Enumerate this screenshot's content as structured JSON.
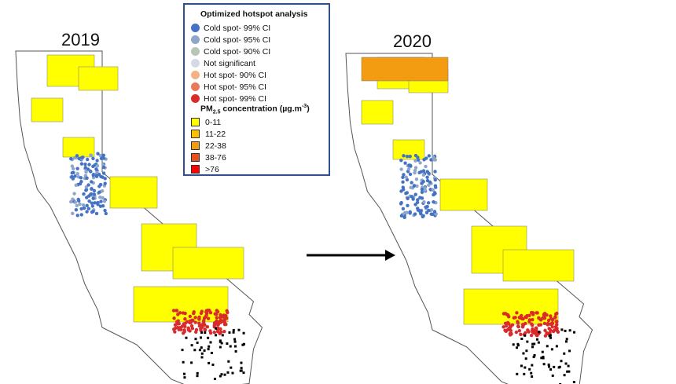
{
  "map_left": {
    "year": "2019"
  },
  "map_right": {
    "year": "2020"
  },
  "legend": {
    "title": "Optimized hotspot analysis",
    "hotspot_items": [
      {
        "label": "Cold spot- 99% CI",
        "color": "#4472c4"
      },
      {
        "label": "Cold spot- 95% CI",
        "color": "#8ea6c9"
      },
      {
        "label": "Cold spot- 90% CI",
        "color": "#b8c6b6"
      },
      {
        "label": "Not significant",
        "color": "#d3dce6"
      },
      {
        "label": "Hot spot- 90% CI",
        "color": "#f4b183"
      },
      {
        "label": "Hot spot- 95% CI",
        "color": "#e77a5a"
      },
      {
        "label": "Hot spot- 99% CI",
        "color": "#d92b2b"
      }
    ],
    "pm_title_prefix": "PM",
    "pm_title_sub": "2.5",
    "pm_title_mid": " concentration (µg.m",
    "pm_title_sup": "-3",
    "pm_title_suffix": ")",
    "pm_items": [
      {
        "label": "0-11",
        "color": "#ffff00"
      },
      {
        "label": "11-22",
        "color": "#ffc000"
      },
      {
        "label": "22-38",
        "color": "#f39c12"
      },
      {
        "label": "38-76",
        "color": "#e8501c"
      },
      {
        "label": ">76",
        "color": "#ff0000"
      }
    ]
  },
  "arrow": {
    "color": "#000000"
  }
}
